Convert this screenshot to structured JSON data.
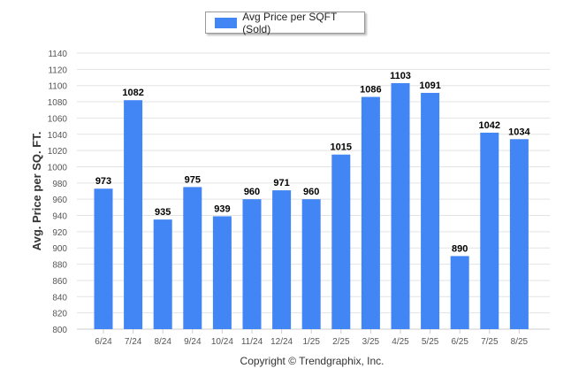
{
  "colors": {
    "bar": "#4285f4",
    "grid": "#e3e3e3",
    "axis_text": "#555555",
    "label_text": "#000000"
  },
  "legend": {
    "label": "Avg Price per SQFT (Sold)",
    "placement": "top-center"
  },
  "footer": {
    "copyright": "Copyright © Trendgraphix, Inc."
  },
  "chart_data": {
    "type": "bar",
    "title": "",
    "xlabel": "",
    "ylabel": "Avg. Price per SQ. FT.",
    "ylim": [
      800,
      1140
    ],
    "yticks": [
      800,
      820,
      840,
      860,
      880,
      900,
      920,
      940,
      960,
      980,
      1000,
      1020,
      1040,
      1060,
      1080,
      1100,
      1120,
      1140
    ],
    "grid": true,
    "categories": [
      "6/24",
      "7/24",
      "8/24",
      "9/24",
      "10/24",
      "11/24",
      "12/24",
      "1/25",
      "2/25",
      "3/25",
      "4/25",
      "5/25",
      "6/25",
      "7/25",
      "8/25"
    ],
    "series": [
      {
        "name": "Avg Price per SQFT (Sold)",
        "values": [
          973,
          1082,
          935,
          975,
          939,
          960,
          971,
          960,
          1015,
          1086,
          1103,
          1091,
          890,
          1042,
          1034
        ]
      }
    ]
  }
}
